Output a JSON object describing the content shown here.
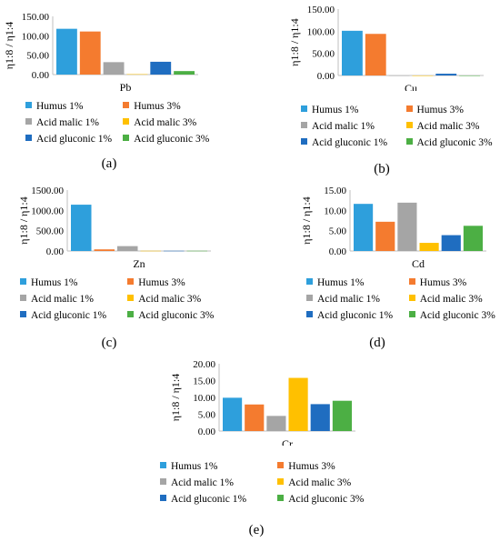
{
  "series_names": [
    "Humus 1%",
    "Humus 3%",
    "Acid malic 1%",
    "Acid malic 3%",
    "Acid gluconic 1%",
    "Acid gluconic 3%"
  ],
  "colors": [
    "#2E9FDC",
    "#F47B2F",
    "#A5A5A5",
    "#FFC000",
    "#1F6DC0",
    "#4CAF44"
  ],
  "chart_data": [
    {
      "type": "bar",
      "panel_label": "(a)",
      "xlabel": "Pb",
      "ylabel": "η1:8 / η1:4",
      "yticks": [
        "0.00",
        "50.00",
        "100.00",
        "150.00"
      ],
      "ylim": [
        0,
        150
      ],
      "categories": [
        "Pb"
      ],
      "series": [
        {
          "name": "Humus 1%",
          "values": [
            118
          ]
        },
        {
          "name": "Humus 3%",
          "values": [
            111
          ]
        },
        {
          "name": "Acid malic 1%",
          "values": [
            32
          ]
        },
        {
          "name": "Acid malic 3%",
          "values": [
            1
          ]
        },
        {
          "name": "Acid gluconic 1%",
          "values": [
            33
          ]
        },
        {
          "name": "Acid gluconic 3%",
          "values": [
            9
          ]
        }
      ],
      "legend": "bottom"
    },
    {
      "type": "bar",
      "panel_label": "(b)",
      "xlabel": "Cu",
      "ylabel": "η1:8 / η1:4",
      "yticks": [
        "0.00",
        "50.00",
        "100.00",
        "150.00"
      ],
      "ylim": [
        0,
        150
      ],
      "categories": [
        "Cu"
      ],
      "series": [
        {
          "name": "Humus 1%",
          "values": [
            101
          ]
        },
        {
          "name": "Humus 3%",
          "values": [
            94
          ]
        },
        {
          "name": "Acid malic 1%",
          "values": [
            0
          ]
        },
        {
          "name": "Acid malic 3%",
          "values": [
            0
          ]
        },
        {
          "name": "Acid gluconic 1%",
          "values": [
            4
          ]
        },
        {
          "name": "Acid gluconic 3%",
          "values": [
            0
          ]
        }
      ],
      "legend": "bottom"
    },
    {
      "type": "bar",
      "panel_label": "(c)",
      "xlabel": "Zn",
      "ylabel": "η1:8 / η1:4",
      "yticks": [
        "0.00",
        "500.00",
        "1000.00",
        "1500.00"
      ],
      "ylim": [
        0,
        1500
      ],
      "categories": [
        "Zn"
      ],
      "series": [
        {
          "name": "Humus 1%",
          "values": [
            1140
          ]
        },
        {
          "name": "Humus 3%",
          "values": [
            40
          ]
        },
        {
          "name": "Acid malic 1%",
          "values": [
            120
          ]
        },
        {
          "name": "Acid malic 3%",
          "values": [
            5
          ]
        },
        {
          "name": "Acid gluconic 1%",
          "values": [
            5
          ]
        },
        {
          "name": "Acid gluconic 3%",
          "values": [
            5
          ]
        }
      ],
      "legend": "bottom"
    },
    {
      "type": "bar",
      "panel_label": "(d)",
      "xlabel": "Cd",
      "ylabel": "η1:8 / η1:4",
      "yticks": [
        "0.00",
        "5.00",
        "10.00",
        "15.00"
      ],
      "ylim": [
        0,
        15
      ],
      "categories": [
        "Cd"
      ],
      "series": [
        {
          "name": "Humus 1%",
          "values": [
            11.6
          ]
        },
        {
          "name": "Humus 3%",
          "values": [
            7.2
          ]
        },
        {
          "name": "Acid malic 1%",
          "values": [
            11.9
          ]
        },
        {
          "name": "Acid malic 3%",
          "values": [
            2.0
          ]
        },
        {
          "name": "Acid gluconic 1%",
          "values": [
            3.9
          ]
        },
        {
          "name": "Acid gluconic 3%",
          "values": [
            6.2
          ]
        }
      ],
      "legend": "bottom"
    },
    {
      "type": "bar",
      "panel_label": "(e)",
      "xlabel": "Cr",
      "ylabel": "η1:8 / η1:4",
      "yticks": [
        "0.00",
        "5.00",
        "10.00",
        "15.00",
        "20.00"
      ],
      "ylim": [
        0,
        20
      ],
      "categories": [
        "Cr"
      ],
      "series": [
        {
          "name": "Humus 1%",
          "values": [
            9.9
          ]
        },
        {
          "name": "Humus 3%",
          "values": [
            7.9
          ]
        },
        {
          "name": "Acid malic 1%",
          "values": [
            4.5
          ]
        },
        {
          "name": "Acid malic 3%",
          "values": [
            15.8
          ]
        },
        {
          "name": "Acid gluconic 1%",
          "values": [
            8.0
          ]
        },
        {
          "name": "Acid gluconic 3%",
          "values": [
            9.0
          ]
        }
      ],
      "legend": "bottom"
    }
  ]
}
